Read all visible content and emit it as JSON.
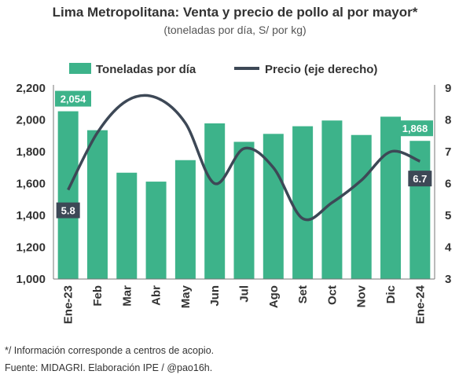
{
  "chart_data": {
    "type": "bar",
    "title": "Lima Metropolitana: Venta y precio de pollo al por mayor*",
    "subtitle": "(toneladas por día, S/ por kg)",
    "categories": [
      "Ene-23",
      "Feb",
      "Mar",
      "Abr",
      "May",
      "Jun",
      "Jul",
      "Ago",
      "Set",
      "Oct",
      "Nov",
      "Dic",
      "Ene-24"
    ],
    "series": [
      {
        "name": "Toneladas por día",
        "kind": "bar",
        "axis": "left",
        "values": [
          2054,
          1935,
          1668,
          1612,
          1747,
          1978,
          1862,
          1912,
          1960,
          1996,
          1905,
          2020,
          1868
        ]
      },
      {
        "name": "Precio (eje derecho)",
        "kind": "line",
        "axis": "right",
        "values": [
          5.8,
          7.6,
          8.6,
          8.7,
          7.9,
          6.0,
          7.1,
          6.5,
          4.9,
          5.4,
          6.1,
          7.0,
          6.7
        ]
      }
    ],
    "ylim_left": [
      1000,
      2200
    ],
    "ylim_right": [
      3,
      9
    ],
    "yticks_left": [
      "1,000",
      "1,200",
      "1,400",
      "1,600",
      "1,800",
      "2,000",
      "2,200"
    ],
    "yticks_right": [
      "3",
      "4",
      "5",
      "6",
      "7",
      "8",
      "9"
    ],
    "data_labels": [
      {
        "series": 0,
        "index": 0,
        "text": "2,054"
      },
      {
        "series": 0,
        "index": 12,
        "text": "1,868"
      },
      {
        "series": 1,
        "index": 0,
        "text": "5.8"
      },
      {
        "series": 1,
        "index": 12,
        "text": "6.7"
      }
    ],
    "colors": {
      "bar": "#3db38a",
      "line": "#3d4856",
      "label_bar_bg": "#3db38a",
      "label_line_bg": "#3d4856"
    },
    "legend_position": "top",
    "grid": false
  },
  "notes": {
    "footnote": "*/ Información corresponde a centros de acopio.",
    "source": "Fuente: MIDAGRI. Elaboración IPE / @pao16h."
  }
}
